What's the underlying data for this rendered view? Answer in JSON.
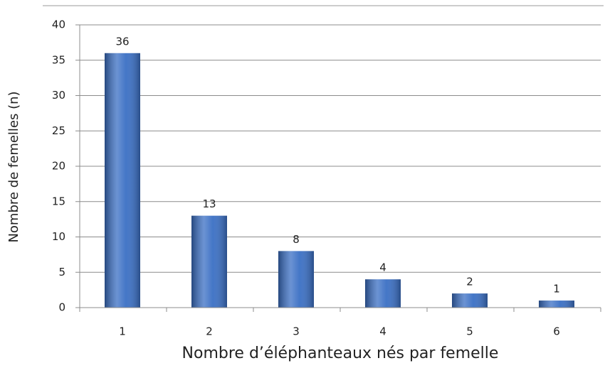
{
  "chart_data": {
    "type": "bar",
    "x_label": "Nombre d’éléphanteaux nés par femelle",
    "y_label": "Nombre de femelles (n)",
    "categories": [
      "1",
      "2",
      "3",
      "4",
      "5",
      "6"
    ],
    "values": [
      36,
      13,
      8,
      4,
      2,
      1
    ],
    "color": "#3a6fc4",
    "ylim": [
      0,
      40
    ],
    "yticks": [
      0,
      5,
      10,
      15,
      20,
      25,
      30,
      35,
      40
    ],
    "grid": true
  }
}
